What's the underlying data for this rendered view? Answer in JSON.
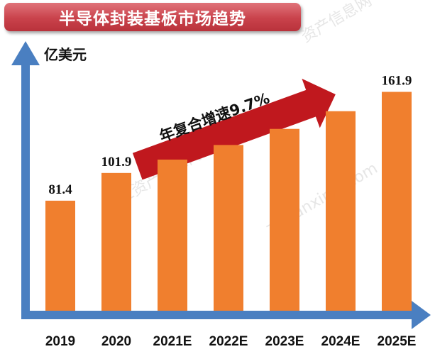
{
  "chart_data": {
    "type": "bar",
    "title": "半导体封装基板市场趋势",
    "ylabel": "亿美元",
    "xlabel": "",
    "categories": [
      "2019",
      "2020",
      "2021E",
      "2022E",
      "2023E",
      "2024E",
      "2025E"
    ],
    "values": [
      81.4,
      101.9,
      111.8,
      122.6,
      134.5,
      147.6,
      161.9
    ],
    "data_labels": [
      "81.4",
      "101.9",
      "",
      "",
      "",
      "",
      "161.9"
    ],
    "ylim": [
      0,
      180
    ],
    "annotation": "年复合增速9.7%",
    "bar_color": "#f07f2e",
    "axis_color": "#4a7fc1",
    "arrow_color": "#c0181e",
    "grid": false
  }
}
